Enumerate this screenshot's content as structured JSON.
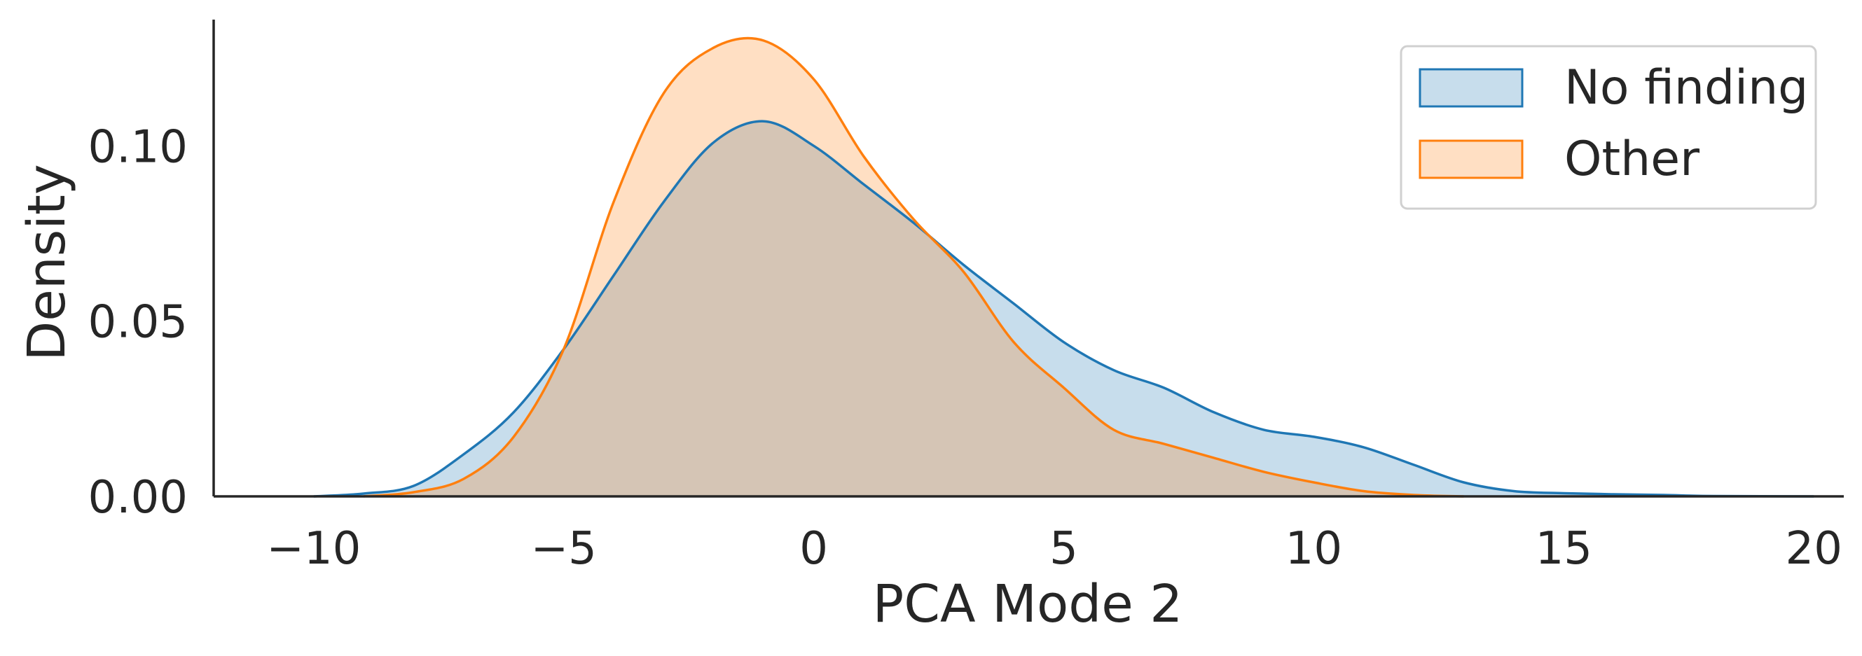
{
  "chart_data": {
    "type": "area",
    "xlabel": "PCA Mode 2",
    "ylabel": "Density",
    "xlim": [
      -12,
      20.6
    ],
    "ylim": [
      0,
      0.136
    ],
    "x_ticks": [
      -10,
      -5,
      0,
      5,
      10,
      15,
      20
    ],
    "x_tick_labels": [
      "−10",
      "−5",
      "0",
      "5",
      "10",
      "15",
      "20"
    ],
    "y_ticks": [
      0.0,
      0.05,
      0.1
    ],
    "y_tick_labels": [
      "0.00",
      "0.05",
      "0.10"
    ],
    "grid": false,
    "legend_position": "top-right",
    "series": [
      {
        "name": "No finding",
        "color": "#1f77b4",
        "x": [
          -10,
          -9,
          -8,
          -7,
          -6,
          -5,
          -4,
          -3,
          -2,
          -1,
          0,
          1,
          2,
          3,
          4,
          5,
          6,
          7,
          8,
          9,
          10,
          11,
          12,
          13,
          14,
          15,
          16,
          17,
          18,
          20
        ],
        "y": [
          0.0,
          0.0008,
          0.003,
          0.012,
          0.024,
          0.042,
          0.063,
          0.084,
          0.101,
          0.107,
          0.1,
          0.089,
          0.078,
          0.066,
          0.055,
          0.044,
          0.036,
          0.031,
          0.024,
          0.019,
          0.017,
          0.014,
          0.009,
          0.004,
          0.0015,
          0.0009,
          0.0006,
          0.0004,
          0.0001,
          0.0
        ]
      },
      {
        "name": "Other",
        "color": "#ff7f0e",
        "x": [
          -9,
          -8,
          -7,
          -6,
          -5,
          -4,
          -3,
          -2,
          -1,
          0,
          1,
          2,
          3,
          4,
          5,
          6,
          7,
          8,
          9,
          10,
          11,
          12,
          13
        ],
        "y": [
          0.0,
          0.0012,
          0.005,
          0.017,
          0.042,
          0.084,
          0.115,
          0.128,
          0.13,
          0.119,
          0.097,
          0.079,
          0.064,
          0.044,
          0.031,
          0.019,
          0.015,
          0.011,
          0.007,
          0.004,
          0.0015,
          0.0004,
          0.0
        ]
      }
    ]
  }
}
